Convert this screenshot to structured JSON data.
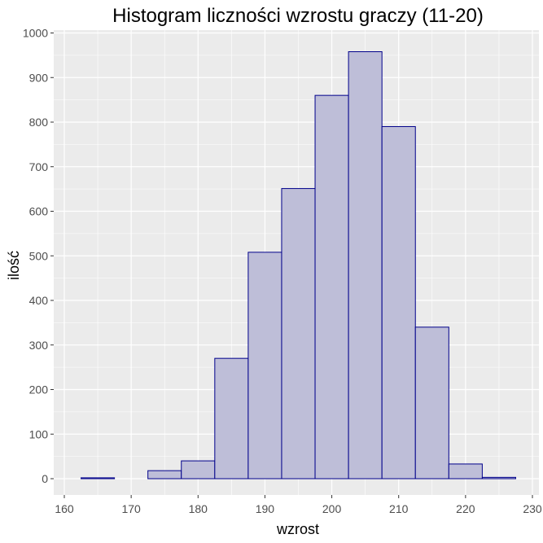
{
  "chart_data": {
    "type": "bar",
    "title": "Histogram liczności wzrostu graczy (11-20)",
    "xlabel": "wzrost",
    "ylabel": "ilość",
    "bin_width": 5,
    "bins": [
      {
        "start": 162.5,
        "end": 167.5,
        "value": 2
      },
      {
        "start": 167.5,
        "end": 172.5,
        "value": 0
      },
      {
        "start": 172.5,
        "end": 177.5,
        "value": 18
      },
      {
        "start": 177.5,
        "end": 182.5,
        "value": 40
      },
      {
        "start": 182.5,
        "end": 187.5,
        "value": 270
      },
      {
        "start": 187.5,
        "end": 192.5,
        "value": 508
      },
      {
        "start": 192.5,
        "end": 197.5,
        "value": 651
      },
      {
        "start": 197.5,
        "end": 202.5,
        "value": 860
      },
      {
        "start": 202.5,
        "end": 207.5,
        "value": 958
      },
      {
        "start": 207.5,
        "end": 212.5,
        "value": 790
      },
      {
        "start": 212.5,
        "end": 217.5,
        "value": 340
      },
      {
        "start": 217.5,
        "end": 222.5,
        "value": 33
      },
      {
        "start": 222.5,
        "end": 227.5,
        "value": 3
      }
    ],
    "xlim": [
      160,
      230
    ],
    "ylim": [
      0,
      1000
    ],
    "x_ticks": [
      160,
      170,
      180,
      190,
      200,
      210,
      220,
      230
    ],
    "y_ticks": [
      0,
      100,
      200,
      300,
      400,
      500,
      600,
      700,
      800,
      900,
      1000
    ],
    "grid": true,
    "colors": {
      "panel_background": "#ebebeb",
      "grid": "#ffffff",
      "bar_fill": "#bebed8",
      "bar_stroke": "#00008b"
    }
  }
}
